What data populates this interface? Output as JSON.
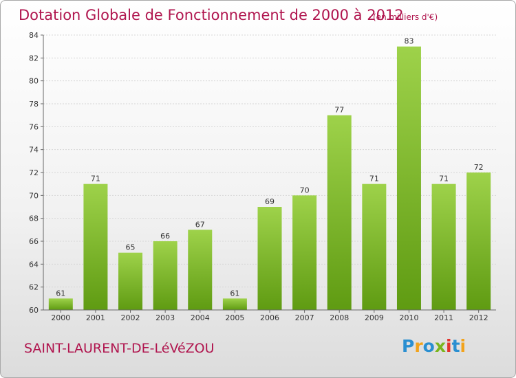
{
  "header": {
    "title": "Dotation Globale de Fonctionnement de 2000 à 2012",
    "unit_note": "(en milliers d'€)"
  },
  "footer": {
    "commune": "SAINT-LAURENT-DE-LéVéZOU",
    "brand_name": "Proxiti",
    "brand_letters": [
      {
        "ch": "P",
        "color": "#2a8fd1"
      },
      {
        "ch": "r",
        "color": "#f2a31b"
      },
      {
        "ch": "o",
        "color": "#2a8fd1"
      },
      {
        "ch": "x",
        "color": "#7ab51d"
      },
      {
        "ch": "i",
        "color": "#e3332d"
      },
      {
        "ch": "t",
        "color": "#2a8fd1"
      },
      {
        "ch": "i",
        "color": "#f2a31b"
      }
    ]
  },
  "colors": {
    "title": "#b0154e",
    "bar_top": "#9ed24a",
    "bar_bottom": "#5f9b12",
    "grid": "#d6d6d6",
    "axis": "#666666"
  },
  "chart_data": {
    "type": "bar",
    "title": "Dotation Globale de Fonctionnement de 2000 à 2012",
    "subtitle": "(en milliers d'€)",
    "categories": [
      "2000",
      "2001",
      "2002",
      "2003",
      "2004",
      "2005",
      "2006",
      "2007",
      "2008",
      "2009",
      "2010",
      "2011",
      "2012"
    ],
    "values": [
      61,
      71,
      65,
      66,
      67,
      61,
      69,
      70,
      77,
      71,
      83,
      71,
      72
    ],
    "ylim": [
      60,
      84
    ],
    "yticks": [
      60,
      62,
      64,
      66,
      68,
      70,
      72,
      74,
      76,
      78,
      80,
      82,
      84
    ],
    "grid": true,
    "data_labels": true,
    "xlabel": "",
    "ylabel": ""
  }
}
